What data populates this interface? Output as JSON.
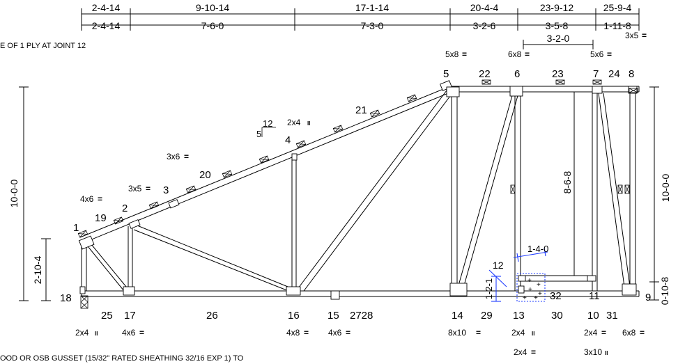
{
  "top_dims": {
    "cumulative": [
      "2-4-14",
      "9-10-14",
      "17-1-14",
      "20-4-4",
      "23-9-12",
      "25-9-4"
    ],
    "spans": [
      "2-4-14",
      "7-6-0",
      "7-3-0",
      "3-2-6",
      "3-5-8",
      "1-11-8"
    ],
    "sub_span": "3-2-0"
  },
  "side_dims": {
    "left_height": "10-0-0",
    "left_heel": "2-10-4",
    "right_height": "10-0-0",
    "right_heel": "0-10-8"
  },
  "detail_dims": {
    "horizontal": "1-4-0",
    "vertical": "1-2-1",
    "slope_num": "12"
  },
  "pitch": {
    "rise": "5",
    "run": "12"
  },
  "notes": {
    "top_left": "E OF 1 PLY AT JOINT 12",
    "bottom": "OOD OR OSB GUSSET (15/32\" RATED SHEATHING 32/16 EXP 1) TO"
  },
  "top_joints": [
    "1",
    "2",
    "3",
    "4",
    "5",
    "6",
    "7",
    "8"
  ],
  "top_member_numbers": [
    "19",
    "20",
    "21",
    "22",
    "23",
    "24"
  ],
  "bottom_labels": [
    "18",
    "25",
    "17",
    "26",
    "16",
    "15",
    "2728",
    "14",
    "29",
    "13",
    "30",
    "10",
    "31",
    "9"
  ],
  "inner_labels": {
    "n32": "32",
    "n11": "11",
    "n12": "12"
  },
  "plates_top": {
    "p1": "4x6",
    "p2": "3x5",
    "p3": "3x6",
    "p4": "2x4",
    "p5": "5x8",
    "p6": "6x8",
    "p7": "5x6",
    "p8": "3x5"
  },
  "plates_bottom": {
    "b18": "2x4",
    "b17": "4x6",
    "b16": "4x8",
    "b15": "4x6",
    "b14": "8x10",
    "b13": "2x4",
    "b13b": "2x4",
    "b10": "2x4",
    "b10b": "3x10",
    "b9": "6x8"
  },
  "web_dim": "8-6-8",
  "plate_marks": {
    "eq": "=",
    "par": "II"
  }
}
